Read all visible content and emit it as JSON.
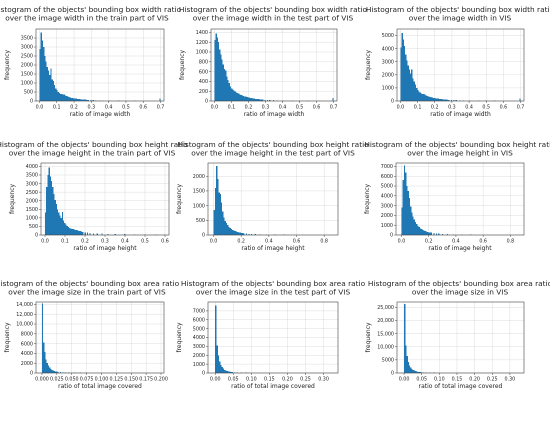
{
  "chart_data": [
    {
      "type": "bar",
      "title": "Histogram of the objects' bounding box width ratio over the image width in the train part of VIS",
      "title_lines": [
        "Histogram of the objects' bounding box width ratio",
        "over the image width in the train part of VIS"
      ],
      "xlabel": "ratio of image width",
      "ylabel": "frequency",
      "xlim": [
        -0.02,
        0.72
      ],
      "ylim": [
        0,
        4000
      ],
      "xticks": [
        0.0,
        0.1,
        0.2,
        0.3,
        0.4,
        0.5,
        0.6,
        0.7
      ],
      "xtick_labels": [
        "0.0",
        "0.1",
        "0.2",
        "0.3",
        "0.4",
        "0.5",
        "0.6",
        "0.7"
      ],
      "yticks": [
        0,
        500,
        1000,
        1500,
        2000,
        2500,
        3000,
        3500
      ],
      "ytick_labels": [
        "0",
        "500",
        "1000",
        "1500",
        "2000",
        "2500",
        "3000",
        "3500"
      ],
      "grid": true,
      "color": "#1f77b4",
      "bin_width": 0.007,
      "x": [
        0.0035,
        0.0105,
        0.0175,
        0.0245,
        0.0315,
        0.0385,
        0.0455,
        0.0525,
        0.0595,
        0.0665,
        0.0735,
        0.0805,
        0.0875,
        0.0945,
        0.1015,
        0.1085,
        0.1155,
        0.1225,
        0.1295,
        0.1365,
        0.1435,
        0.1505,
        0.1575,
        0.1645,
        0.1715,
        0.1785,
        0.1855,
        0.1925,
        0.1995,
        0.2065,
        0.2135,
        0.2205,
        0.2275,
        0.2345,
        0.2415,
        0.2485,
        0.2555,
        0.2625,
        0.2695,
        0.2765,
        0.2835,
        0.2975,
        0.3115,
        0.3255,
        0.3465,
        0.3675,
        0.4025,
        0.4585,
        0.5005,
        0.5495,
        0.6965
      ],
      "values": [
        2900,
        3800,
        3350,
        3000,
        2500,
        2200,
        1900,
        1700,
        1450,
        1800,
        1200,
        1100,
        900,
        700,
        600,
        500,
        450,
        400,
        380,
        360,
        350,
        300,
        280,
        250,
        220,
        200,
        180,
        160,
        150,
        140,
        130,
        120,
        110,
        100,
        95,
        90,
        80,
        75,
        70,
        65,
        60,
        50,
        45,
        40,
        35,
        30,
        25,
        20,
        20,
        15,
        150
      ]
    },
    {
      "type": "bar",
      "title": "Histogram of the objects' bounding box width ratio over the image width in the test part of VIS",
      "title_lines": [
        "Histogram of the objects' bounding box width ratio",
        "over the image width in the test part of VIS"
      ],
      "xlabel": "ratio of image width",
      "ylabel": "frequency",
      "xlim": [
        -0.02,
        0.72
      ],
      "ylim": [
        0,
        1470
      ],
      "xticks": [
        0.0,
        0.1,
        0.2,
        0.3,
        0.4,
        0.5,
        0.6,
        0.7
      ],
      "xtick_labels": [
        "0.0",
        "0.1",
        "0.2",
        "0.3",
        "0.4",
        "0.5",
        "0.6",
        "0.7"
      ],
      "yticks": [
        0,
        200,
        400,
        600,
        800,
        1000,
        1200,
        1400
      ],
      "ytick_labels": [
        "0",
        "200",
        "400",
        "600",
        "800",
        "1000",
        "1200",
        "1400"
      ],
      "grid": true,
      "color": "#1f77b4",
      "bin_width": 0.007,
      "x": [
        0.0035,
        0.0105,
        0.0175,
        0.0245,
        0.0315,
        0.0385,
        0.0455,
        0.0525,
        0.0595,
        0.0665,
        0.0735,
        0.0805,
        0.0875,
        0.0945,
        0.1015,
        0.1085,
        0.1155,
        0.1225,
        0.1295,
        0.1365,
        0.1435,
        0.1505,
        0.1575,
        0.1645,
        0.1715,
        0.1785,
        0.1855,
        0.1925,
        0.1995,
        0.2065,
        0.2135,
        0.2205,
        0.2275,
        0.2345,
        0.2415,
        0.2485,
        0.2555,
        0.2625,
        0.2695,
        0.2765,
        0.2835,
        0.2975,
        0.3115,
        0.3255,
        0.3465,
        0.3675,
        0.4025,
        0.4585,
        0.5005,
        0.5495,
        0.6965
      ],
      "values": [
        1250,
        1380,
        1300,
        1200,
        1050,
        950,
        850,
        750,
        650,
        620,
        500,
        430,
        370,
        300,
        260,
        230,
        210,
        190,
        175,
        160,
        150,
        135,
        125,
        115,
        100,
        95,
        90,
        80,
        75,
        70,
        65,
        60,
        55,
        50,
        45,
        42,
        40,
        38,
        35,
        30,
        28,
        25,
        22,
        20,
        18,
        15,
        12,
        10,
        10,
        8,
        60
      ]
    },
    {
      "type": "bar",
      "title": "Histogram of the objects' bounding box width ratio over the image width in VIS",
      "title_lines": [
        "Histogram of the objects' bounding box width ratio",
        "over the image width in VIS"
      ],
      "xlabel": "ratio of image width",
      "ylabel": "frequency",
      "xlim": [
        -0.02,
        0.72
      ],
      "ylim": [
        0,
        5500
      ],
      "xticks": [
        0.0,
        0.1,
        0.2,
        0.3,
        0.4,
        0.5,
        0.6,
        0.7
      ],
      "xtick_labels": [
        "0.0",
        "0.1",
        "0.2",
        "0.3",
        "0.4",
        "0.5",
        "0.6",
        "0.7"
      ],
      "yticks": [
        0,
        1000,
        2000,
        3000,
        4000,
        5000
      ],
      "ytick_labels": [
        "0",
        "1000",
        "2000",
        "3000",
        "4000",
        "5000"
      ],
      "grid": true,
      "color": "#1f77b4",
      "bin_width": 0.007,
      "x": [
        0.0035,
        0.0105,
        0.0175,
        0.0245,
        0.0315,
        0.0385,
        0.0455,
        0.0525,
        0.0595,
        0.0665,
        0.0735,
        0.0805,
        0.0875,
        0.0945,
        0.1015,
        0.1085,
        0.1155,
        0.1225,
        0.1295,
        0.1365,
        0.1435,
        0.1505,
        0.1575,
        0.1645,
        0.1715,
        0.1785,
        0.1855,
        0.1925,
        0.1995,
        0.2065,
        0.2135,
        0.2205,
        0.2275,
        0.2345,
        0.2415,
        0.2485,
        0.2555,
        0.2625,
        0.2695,
        0.2765,
        0.2835,
        0.2975,
        0.3115,
        0.3255,
        0.3465,
        0.3675,
        0.4025,
        0.4585,
        0.5005,
        0.5495,
        0.6965
      ],
      "values": [
        4100,
        5200,
        4700,
        4200,
        3550,
        3100,
        2700,
        2400,
        2100,
        2400,
        1700,
        1500,
        1250,
        1000,
        850,
        730,
        650,
        590,
        550,
        520,
        500,
        430,
        400,
        360,
        320,
        290,
        270,
        240,
        220,
        210,
        195,
        180,
        165,
        150,
        140,
        130,
        120,
        110,
        100,
        95,
        90,
        75,
        65,
        60,
        55,
        45,
        40,
        30,
        30,
        25,
        200
      ]
    },
    {
      "type": "bar",
      "title": "Histogram of the objects' bounding box height ratio over the image height in the train part of VIS",
      "title_lines": [
        "Histogram of the objects' bounding box height ratio",
        "over the image height in the train part of VIS"
      ],
      "xlabel": "ratio of image height",
      "ylabel": "frequency",
      "xlim": [
        -0.02,
        0.62
      ],
      "ylim": [
        0,
        4200
      ],
      "xticks": [
        0.0,
        0.1,
        0.2,
        0.3,
        0.4,
        0.5,
        0.6
      ],
      "xtick_labels": [
        "0.0",
        "0.1",
        "0.2",
        "0.3",
        "0.4",
        "0.5",
        "0.6"
      ],
      "yticks": [
        0,
        500,
        1000,
        1500,
        2000,
        2500,
        3000,
        3500,
        4000
      ],
      "ytick_labels": [
        "0",
        "500",
        "1000",
        "1500",
        "2000",
        "2500",
        "3000",
        "3500",
        "4000"
      ],
      "grid": true,
      "color": "#1f77b4",
      "bin_width": 0.006,
      "x": [
        0.003,
        0.009,
        0.015,
        0.021,
        0.027,
        0.033,
        0.039,
        0.045,
        0.051,
        0.057,
        0.063,
        0.069,
        0.075,
        0.081,
        0.087,
        0.093,
        0.099,
        0.105,
        0.111,
        0.117,
        0.123,
        0.129,
        0.135,
        0.141,
        0.147,
        0.153,
        0.159,
        0.165,
        0.171,
        0.177,
        0.183,
        0.189,
        0.201,
        0.213,
        0.225,
        0.243,
        0.261,
        0.285,
        0.315,
        0.351,
        0.399,
        0.447,
        0.501,
        0.555,
        0.597
      ],
      "values": [
        1300,
        2800,
        3500,
        3950,
        3400,
        3150,
        2800,
        2400,
        2050,
        1800,
        1500,
        1300,
        1150,
        1000,
        1350,
        850,
        700,
        600,
        520,
        460,
        420,
        380,
        360,
        340,
        320,
        300,
        280,
        260,
        240,
        220,
        200,
        180,
        160,
        140,
        120,
        100,
        90,
        80,
        70,
        60,
        50,
        40,
        30,
        25,
        40
      ]
    },
    {
      "type": "bar",
      "title": "Histogram of the objects' bounding box height ratio over the image height in the test part of VIS",
      "title_lines": [
        "Histogram of the objects' bounding box height ratio",
        "over the image height in the test part of VIS"
      ],
      "xlabel": "ratio of image height",
      "ylabel": "frequency",
      "xlim": [
        -0.04,
        0.9
      ],
      "ylim": [
        0,
        2450
      ],
      "xticks": [
        0.0,
        0.2,
        0.4,
        0.6,
        0.8
      ],
      "xtick_labels": [
        "0.0",
        "0.2",
        "0.4",
        "0.6",
        "0.8"
      ],
      "yticks": [
        0,
        500,
        1000,
        1500,
        2000
      ],
      "ytick_labels": [
        "0",
        "500",
        "1000",
        "1500",
        "2000"
      ],
      "grid": true,
      "color": "#1f77b4",
      "bin_width": 0.009,
      "x": [
        0.0045,
        0.0135,
        0.0225,
        0.0315,
        0.0405,
        0.0495,
        0.0585,
        0.0675,
        0.0765,
        0.0855,
        0.0945,
        0.1035,
        0.1125,
        0.1215,
        0.1305,
        0.1395,
        0.1485,
        0.1575,
        0.1665,
        0.1755,
        0.1845,
        0.1935,
        0.2025,
        0.2115,
        0.2205,
        0.2385,
        0.2565,
        0.2745,
        0.3015,
        0.3375,
        0.3825,
        0.4455,
        0.5085,
        0.6255,
        0.8055
      ],
      "values": [
        850,
        1600,
        2350,
        1900,
        1450,
        1400,
        1100,
        800,
        600,
        480,
        400,
        340,
        280,
        230,
        200,
        170,
        150,
        130,
        115,
        100,
        90,
        80,
        70,
        60,
        55,
        45,
        40,
        35,
        28,
        22,
        18,
        14,
        10,
        8,
        5
      ]
    },
    {
      "type": "bar",
      "title": "Histogram of the objects' bounding box height ratio over the image height in VIS",
      "title_lines": [
        "Histogram of the objects' bounding box height ratio",
        "over the image height in VIS"
      ],
      "xlabel": "ratio of image height",
      "ylabel": "frequency",
      "xlim": [
        -0.04,
        0.9
      ],
      "ylim": [
        0,
        7350
      ],
      "xticks": [
        0.0,
        0.2,
        0.4,
        0.6,
        0.8
      ],
      "xtick_labels": [
        "0.0",
        "0.2",
        "0.4",
        "0.6",
        "0.8"
      ],
      "yticks": [
        0,
        1000,
        2000,
        3000,
        4000,
        5000,
        6000,
        7000
      ],
      "ytick_labels": [
        "0",
        "1000",
        "2000",
        "3000",
        "4000",
        "5000",
        "6000",
        "7000"
      ],
      "grid": true,
      "color": "#1f77b4",
      "bin_width": 0.009,
      "x": [
        0.0045,
        0.0135,
        0.0225,
        0.0315,
        0.0405,
        0.0495,
        0.0585,
        0.0675,
        0.0765,
        0.0855,
        0.0945,
        0.1035,
        0.1125,
        0.1215,
        0.1305,
        0.1395,
        0.1485,
        0.1575,
        0.1665,
        0.1755,
        0.1845,
        0.1935,
        0.2025,
        0.2115,
        0.2205,
        0.2385,
        0.2565,
        0.2745,
        0.3015,
        0.3375,
        0.3825,
        0.4455,
        0.5085,
        0.6255,
        0.8055
      ],
      "values": [
        2800,
        5600,
        7100,
        6400,
        5000,
        4500,
        3800,
        2900,
        2300,
        1900,
        1600,
        1350,
        1100,
        920,
        800,
        680,
        600,
        520,
        460,
        400,
        360,
        320,
        280,
        250,
        230,
        190,
        160,
        130,
        100,
        80,
        60,
        45,
        30,
        20,
        15
      ]
    },
    {
      "type": "bar",
      "title": "Histogram of the objects' bounding box area ratio over the image size in the train part of VIS",
      "title_lines": [
        "Histogram of the objects' bounding box area ratio",
        "over the image size in the train part of VIS"
      ],
      "xlabel": "ratio of total image covered",
      "ylabel": "frequency",
      "xlim": [
        -0.01,
        0.205
      ],
      "ylim": [
        0,
        14500
      ],
      "xticks": [
        0.0,
        0.025,
        0.05,
        0.075,
        0.1,
        0.125,
        0.15,
        0.175,
        0.2
      ],
      "xtick_labels": [
        "0.000",
        "0.025",
        "0.050",
        "0.075",
        "0.100",
        "0.125",
        "0.150",
        "0.175",
        "0.200"
      ],
      "yticks": [
        0,
        2000,
        4000,
        6000,
        8000,
        10000,
        12000,
        14000
      ],
      "ytick_labels": [
        "0",
        "2000",
        "4000",
        "6000",
        "8000",
        "10,000",
        "12,000",
        "14,000"
      ],
      "grid": true,
      "color": "#1f77b4",
      "bin_width": 0.002,
      "x": [
        0.001,
        0.003,
        0.005,
        0.007,
        0.009,
        0.011,
        0.013,
        0.015,
        0.017,
        0.019,
        0.021,
        0.023,
        0.025,
        0.027,
        0.031,
        0.035,
        0.039,
        0.045,
        0.055,
        0.065,
        0.075,
        0.085,
        0.095,
        0.11,
        0.13,
        0.15,
        0.17,
        0.19
      ],
      "values": [
        14200,
        6200,
        4300,
        2800,
        2000,
        1500,
        1100,
        850,
        650,
        500,
        400,
        320,
        260,
        220,
        180,
        150,
        120,
        100,
        80,
        65,
        55,
        45,
        35,
        28,
        20,
        15,
        10,
        8
      ]
    },
    {
      "type": "bar",
      "title": "Histogram of the objects' bounding box area ratio over the image size in the test part of VIS",
      "title_lines": [
        "Histogram of the objects' bounding box area ratio",
        "over the image size in the test part of VIS"
      ],
      "xlabel": "ratio of total image covered",
      "ylabel": "frequency",
      "xlim": [
        -0.02,
        0.34
      ],
      "ylim": [
        0,
        8000
      ],
      "xticks": [
        0.0,
        0.05,
        0.1,
        0.15,
        0.2,
        0.25,
        0.3
      ],
      "xtick_labels": [
        "0.00",
        "0.05",
        "0.10",
        "0.15",
        "0.20",
        "0.25",
        "0.30"
      ],
      "yticks": [
        0,
        1000,
        2000,
        3000,
        4000,
        5000,
        6000,
        7000
      ],
      "ytick_labels": [
        "0",
        "1000",
        "2000",
        "3000",
        "4000",
        "5000",
        "6000",
        "7000"
      ],
      "grid": true,
      "color": "#1f77b4",
      "bin_width": 0.0035,
      "x": [
        0.00175,
        0.00525,
        0.00875,
        0.01225,
        0.01575,
        0.01925,
        0.02275,
        0.02625,
        0.02975,
        0.03325,
        0.03675,
        0.04025,
        0.04375,
        0.04725,
        0.05425,
        0.06125,
        0.07175,
        0.08575,
        0.10325,
        0.12775,
        0.16275,
        0.20475,
        0.25725,
        0.30975
      ],
      "values": [
        7600,
        3100,
        2000,
        1300,
        900,
        650,
        480,
        360,
        280,
        220,
        180,
        150,
        120,
        100,
        80,
        60,
        45,
        35,
        25,
        18,
        12,
        8,
        5,
        3
      ]
    },
    {
      "type": "bar",
      "title": "Histogram of the objects' bounding box area ratio over the image size in VIS",
      "title_lines": [
        "Histogram of the objects' bounding box area ratio",
        "over the image size in VIS"
      ],
      "xlabel": "ratio of total image covered",
      "ylabel": "frequency",
      "xlim": [
        -0.02,
        0.34
      ],
      "ylim": [
        0,
        27000
      ],
      "xticks": [
        0.0,
        0.05,
        0.1,
        0.15,
        0.2,
        0.25,
        0.3
      ],
      "xtick_labels": [
        "0.00",
        "0.05",
        "0.10",
        "0.15",
        "0.20",
        "0.25",
        "0.30"
      ],
      "yticks": [
        0,
        5000,
        10000,
        15000,
        20000,
        25000
      ],
      "ytick_labels": [
        "0",
        "5000",
        "10,000",
        "15,000",
        "20,000",
        "25,000"
      ],
      "grid": true,
      "color": "#1f77b4",
      "bin_width": 0.0035,
      "x": [
        0.00175,
        0.00525,
        0.00875,
        0.01225,
        0.01575,
        0.01925,
        0.02275,
        0.02625,
        0.02975,
        0.03325,
        0.03675,
        0.04025,
        0.04375,
        0.04725,
        0.05425,
        0.06125,
        0.07175,
        0.08575,
        0.10325,
        0.12775,
        0.16275,
        0.20475,
        0.25725,
        0.30975
      ],
      "values": [
        26300,
        10500,
        6400,
        4200,
        2900,
        2100,
        1550,
        1150,
        900,
        700,
        560,
        460,
        380,
        320,
        250,
        190,
        140,
        105,
        75,
        55,
        35,
        22,
        14,
        8
      ]
    }
  ]
}
